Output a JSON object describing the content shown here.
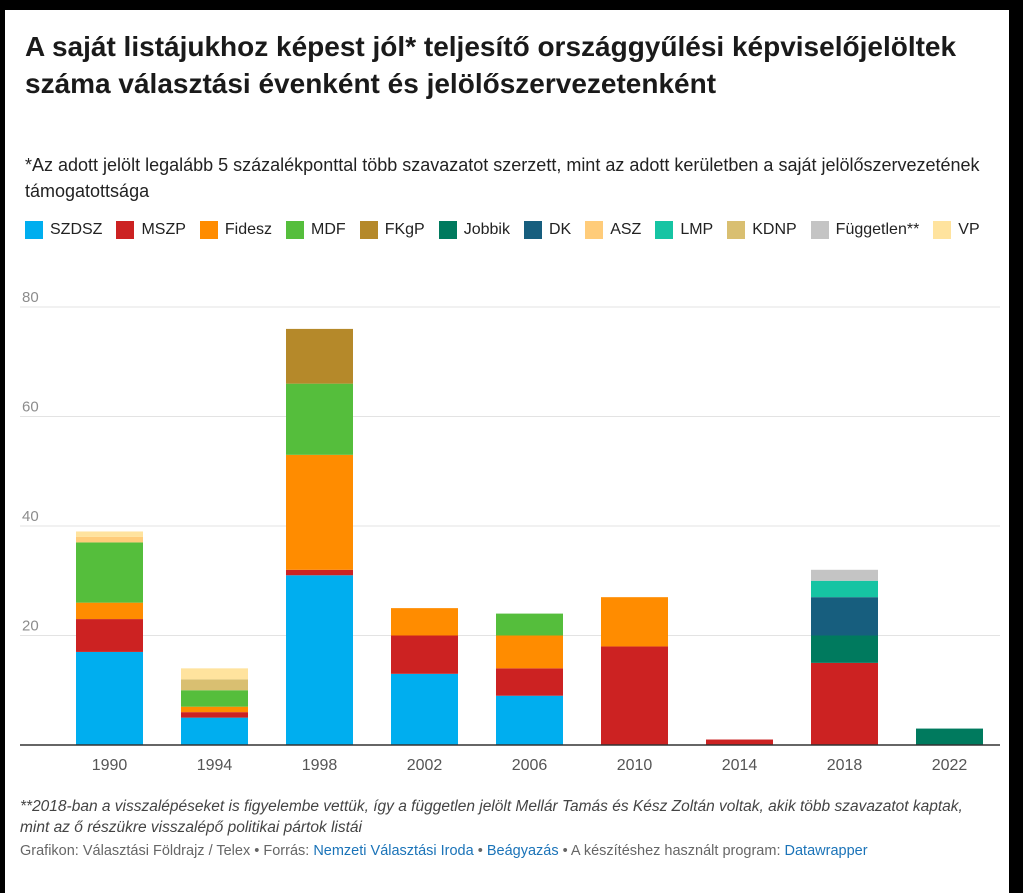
{
  "title": "A saját listájukhoz képest jól* teljesítő országgyűlési képviselőjelöltek száma választási évenként és jelölőszervezetenként",
  "subtitle": "*Az adott jelölt legalább 5 százalékponttal több szavazatot szerzett, mint az adott kerületben a saját jelölőszervezetének támogatottsága",
  "note": "**2018-ban a visszalépéseket is figyelembe vettük, így a független jelölt Mellár Tamás és Kész Zoltán voltak, akik több szavazatot kaptak, mint az ő részükre visszalépő politikai pártok listái",
  "footer": {
    "credit": "Grafikon: Választási Földrajz / Telex",
    "sep1": "•",
    "source_label": "Forrás:",
    "source_link": "Nemzeti Választási Iroda",
    "sep2": "•",
    "embed_link": "Beágyazás",
    "sep3": "•",
    "tool_label": "A készítéshez használt program:",
    "tool_link": "Datawrapper"
  },
  "colors": {
    "SZDSZ": "#00aeef",
    "MSZP": "#cc2222",
    "Fidesz": "#ff8c00",
    "MDF": "#55be3c",
    "FKgP": "#b5892a",
    "Jobbik": "#007a5e",
    "DK": "#175e7e",
    "ASZ": "#ffcc7a",
    "LMP": "#16c4a3",
    "KDNP": "#d9bf71",
    "Független**": "#c4c4c4",
    "VP": "#ffe39e"
  },
  "chart_data": {
    "type": "bar",
    "stacked": true,
    "title": "A saját listájukhoz képest jól* teljesítő országgyűlési képviselőjelöltek száma választási évenként és jelölőszervezetenként",
    "xlabel": "",
    "ylabel": "",
    "ylim": [
      0,
      80
    ],
    "yticks": [
      0,
      20,
      40,
      60,
      80
    ],
    "ytick_labels": [
      "",
      "20",
      "40",
      "60",
      "80"
    ],
    "grid": true,
    "legend_position": "top",
    "categories": [
      "1990",
      "1994",
      "1998",
      "2002",
      "2006",
      "2010",
      "2014",
      "2018",
      "2022"
    ],
    "series": [
      {
        "name": "SZDSZ",
        "values": [
          17,
          5,
          31,
          13,
          9,
          0,
          0,
          0,
          0
        ]
      },
      {
        "name": "MSZP",
        "values": [
          6,
          1,
          1,
          7,
          5,
          18,
          1,
          15,
          0
        ]
      },
      {
        "name": "Fidesz",
        "values": [
          3,
          1,
          21,
          5,
          6,
          9,
          0,
          0,
          0
        ]
      },
      {
        "name": "MDF",
        "values": [
          11,
          3,
          13,
          0,
          4,
          0,
          0,
          0,
          0
        ]
      },
      {
        "name": "FKgP",
        "values": [
          0,
          0,
          10,
          0,
          0,
          0,
          0,
          0,
          0
        ]
      },
      {
        "name": "Jobbik",
        "values": [
          0,
          0,
          0,
          0,
          0,
          0,
          0,
          5,
          3
        ]
      },
      {
        "name": "DK",
        "values": [
          0,
          0,
          0,
          0,
          0,
          0,
          0,
          7,
          0
        ]
      },
      {
        "name": "ASZ",
        "values": [
          1,
          0,
          0,
          0,
          0,
          0,
          0,
          0,
          0
        ]
      },
      {
        "name": "LMP",
        "values": [
          0,
          0,
          0,
          0,
          0,
          0,
          0,
          3,
          0
        ]
      },
      {
        "name": "KDNP",
        "values": [
          0,
          2,
          0,
          0,
          0,
          0,
          0,
          0,
          0
        ]
      },
      {
        "name": "Független**",
        "values": [
          0,
          0,
          0,
          0,
          0,
          0,
          0,
          2,
          0
        ]
      },
      {
        "name": "VP",
        "values": [
          1,
          2,
          0,
          0,
          0,
          0,
          0,
          0,
          0
        ]
      }
    ]
  }
}
